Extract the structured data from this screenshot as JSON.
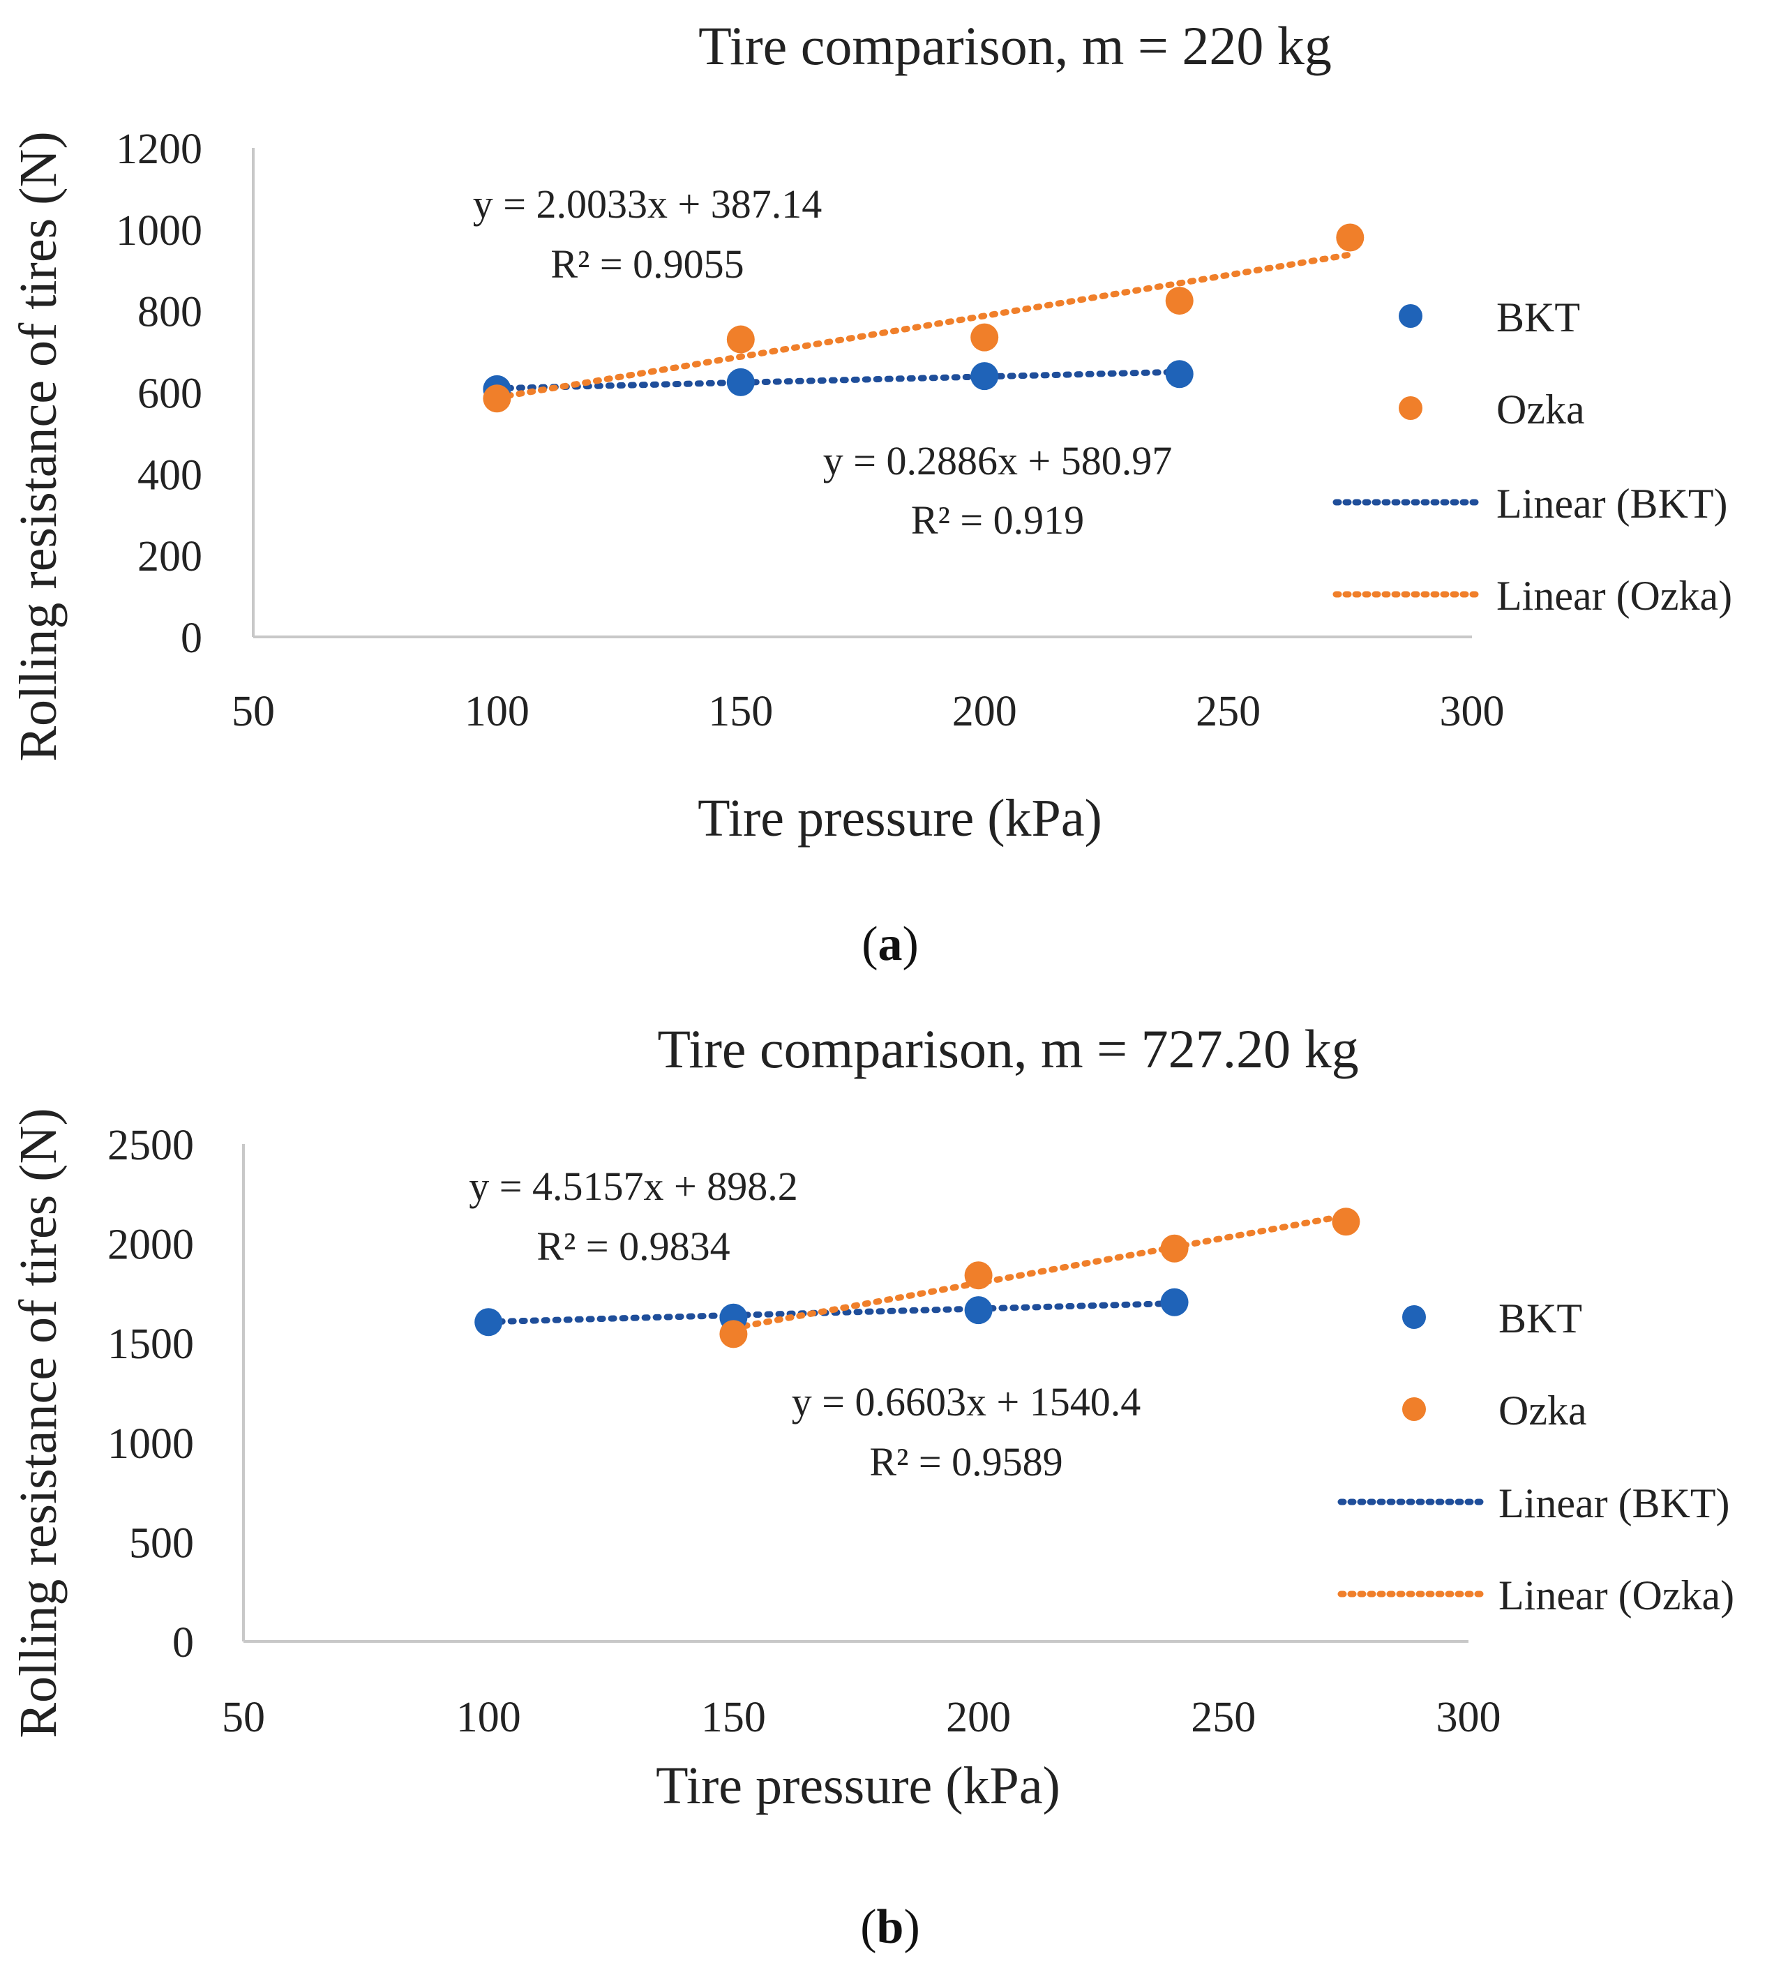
{
  "chart_data": [
    {
      "type": "scatter",
      "title": "Tire comparison, m = 220 kg",
      "xlabel": "Tire pressure (kPa)",
      "ylabel": "Rolling resistance of tires (N)",
      "xlim": [
        50,
        300
      ],
      "ylim": [
        0,
        1200
      ],
      "xticks": [
        50,
        100,
        150,
        200,
        250,
        300
      ],
      "yticks": [
        0,
        200,
        400,
        600,
        800,
        1000,
        1200
      ],
      "caption_open": "(",
      "caption_letter": "a",
      "caption_close": ")",
      "series": [
        {
          "name": "BKT",
          "color": "#1f63b8",
          "x": [
            100,
            150,
            200,
            240
          ],
          "y": [
            608,
            625,
            640,
            645
          ]
        },
        {
          "name": "Ozka",
          "color": "#f07f2a",
          "x": [
            100,
            150,
            200,
            240,
            275
          ],
          "y": [
            585,
            730,
            735,
            825,
            980
          ]
        }
      ],
      "trendlines": [
        {
          "name": "Linear (BKT)",
          "color": "#1f4e9a",
          "slope": 0.2886,
          "intercept": 580.97,
          "x_range": [
            100,
            240
          ],
          "equation": "y = 0.2886x + 580.97",
          "r2": "R² = 0.919"
        },
        {
          "name": "Linear (Ozka)",
          "color": "#f07f2a",
          "slope": 2.0033,
          "intercept": 387.14,
          "x_range": [
            100,
            275
          ],
          "equation": "y = 2.0033x + 387.14",
          "r2": "R² = 0.9055"
        }
      ],
      "legend_position": "right"
    },
    {
      "type": "scatter",
      "title": "Tire comparison, m = 727.20 kg",
      "xlabel": "Tire pressure (kPa)",
      "ylabel": "Rolling resistance of tires (N)",
      "xlim": [
        50,
        300
      ],
      "ylim": [
        0,
        2500
      ],
      "xticks": [
        50,
        100,
        150,
        200,
        250,
        300
      ],
      "yticks": [
        0,
        500,
        1000,
        1500,
        2000,
        2500
      ],
      "caption_open": "(",
      "caption_letter": "b",
      "caption_close": ")",
      "series": [
        {
          "name": "BKT",
          "color": "#1f63b8",
          "x": [
            100,
            150,
            200,
            240
          ],
          "y": [
            1605,
            1628,
            1665,
            1705
          ]
        },
        {
          "name": "Ozka",
          "color": "#f07f2a",
          "x": [
            150,
            200,
            240,
            275
          ],
          "y": [
            1545,
            1840,
            1975,
            2110
          ]
        }
      ],
      "trendlines": [
        {
          "name": "Linear (BKT)",
          "color": "#1f4e9a",
          "slope": 0.6603,
          "intercept": 1540.4,
          "x_range": [
            100,
            240
          ],
          "equation": "y = 0.6603x + 1540.4",
          "r2": "R² = 0.9589"
        },
        {
          "name": "Linear (Ozka)",
          "color": "#f07f2a",
          "slope": 4.5157,
          "intercept": 898.2,
          "x_range": [
            150,
            275
          ],
          "equation": "y = 4.5157x + 898.2",
          "r2": "R² = 0.9834"
        }
      ],
      "legend_position": "right"
    }
  ]
}
